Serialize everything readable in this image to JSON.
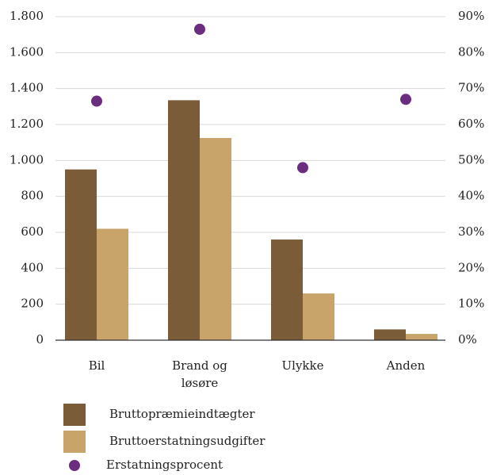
{
  "chart_data": {
    "type": "bar",
    "categories": [
      "Bil",
      "Brand og løsøre",
      "Ulykke",
      "Anden"
    ],
    "series": [
      {
        "name": "Bruttopræmieindtægter",
        "color": "#7a5c38",
        "values": [
          950,
          1335,
          560,
          60
        ]
      },
      {
        "name": "Bruttoerstatningsudgifter",
        "color": "#c9a46a",
        "values": [
          620,
          1125,
          260,
          35
        ]
      },
      {
        "name": "Erstatningsprocent",
        "color": "#6b2d7f",
        "type": "scatter",
        "axis": "y2",
        "values": [
          66.5,
          86.5,
          48,
          67
        ]
      }
    ],
    "ylim": [
      0,
      1800
    ],
    "yticks": [
      0,
      200,
      400,
      600,
      800,
      {
        "value": 1000,
        "label": "1.000"
      },
      {
        "value": 1200,
        "label": "1.200"
      },
      {
        "value": 1400,
        "label": "1.400"
      },
      {
        "value": 1600,
        "label": "1.600"
      },
      {
        "value": 1800,
        "label": "1.800"
      }
    ],
    "y2lim": [
      0,
      90
    ],
    "y2ticks": [
      {
        "value": 0,
        "label": "0%"
      },
      {
        "value": 10,
        "label": "10%"
      },
      {
        "value": 20,
        "label": "20%"
      },
      {
        "value": 30,
        "label": "30%"
      },
      {
        "value": 40,
        "label": "40%"
      },
      {
        "value": 50,
        "label": "50%"
      },
      {
        "value": 60,
        "label": "60%"
      },
      {
        "value": 70,
        "label": "70%"
      },
      {
        "value": 80,
        "label": "80%"
      },
      {
        "value": 90,
        "label": "90%"
      }
    ],
    "grid": true
  }
}
